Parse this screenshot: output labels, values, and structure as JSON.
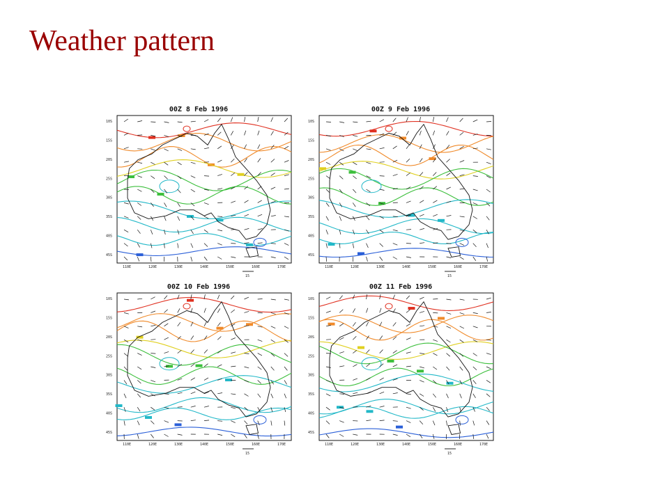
{
  "slide": {
    "title": "Weather pattern"
  },
  "panels": [
    {
      "title": "00Z 8 Feb 1996",
      "vector_scale_label": "15",
      "lat_labels": [
        "10S",
        "15S",
        "20S",
        "25S",
        "30S",
        "35S",
        "40S",
        "45S"
      ],
      "lon_labels": [
        "110E",
        "120E",
        "130E",
        "140E",
        "150E",
        "160E",
        "170E"
      ],
      "colors": {
        "contour_warm": "#e03020",
        "contour_orange": "#f08a2a",
        "contour_yellow": "#e0d020",
        "contour_green": "#3cbf3c",
        "contour_cyan": "#22b8c8",
        "contour_blue": "#2a5fd8",
        "coastline": "#111111",
        "wind_barb": "#111111"
      }
    },
    {
      "title": "00Z 9 Feb 1996",
      "vector_scale_label": "15",
      "lat_labels": [
        "10S",
        "15S",
        "20S",
        "25S",
        "30S",
        "35S",
        "40S",
        "45S"
      ],
      "lon_labels": [
        "110E",
        "120E",
        "130E",
        "140E",
        "150E",
        "160E",
        "170E"
      ],
      "colors": {
        "contour_warm": "#e03020",
        "contour_orange": "#f08a2a",
        "contour_yellow": "#e0d020",
        "contour_green": "#3cbf3c",
        "contour_cyan": "#22b8c8",
        "contour_blue": "#2a5fd8",
        "coastline": "#111111",
        "wind_barb": "#111111"
      }
    },
    {
      "title": "00Z 10 Feb 1996",
      "vector_scale_label": "15",
      "lat_labels": [
        "10S",
        "15S",
        "20S",
        "25S",
        "30S",
        "35S",
        "40S",
        "45S"
      ],
      "lon_labels": [
        "110E",
        "120E",
        "130E",
        "140E",
        "150E",
        "160E",
        "170E"
      ],
      "colors": {
        "contour_warm": "#e03020",
        "contour_orange": "#f08a2a",
        "contour_yellow": "#e0d020",
        "contour_green": "#3cbf3c",
        "contour_cyan": "#22b8c8",
        "contour_blue": "#2a5fd8",
        "coastline": "#111111",
        "wind_barb": "#111111"
      }
    },
    {
      "title": "00Z 11 Feb 1996",
      "vector_scale_label": "15",
      "lat_labels": [
        "10S",
        "15S",
        "20S",
        "25S",
        "30S",
        "35S",
        "40S",
        "45S"
      ],
      "lon_labels": [
        "110E",
        "120E",
        "130E",
        "140E",
        "150E",
        "160E",
        "170E"
      ],
      "colors": {
        "contour_warm": "#e03020",
        "contour_orange": "#f08a2a",
        "contour_yellow": "#e0d020",
        "contour_green": "#3cbf3c",
        "contour_cyan": "#22b8c8",
        "contour_blue": "#2a5fd8",
        "coastline": "#111111",
        "wind_barb": "#111111"
      }
    }
  ]
}
